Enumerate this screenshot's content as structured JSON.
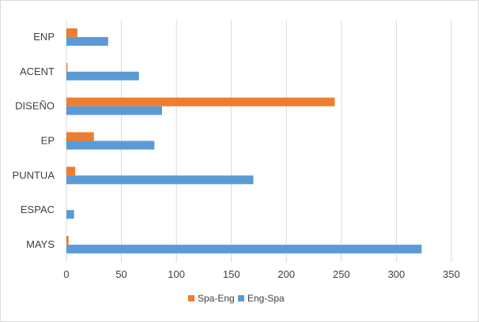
{
  "chart_data": {
    "type": "bar",
    "orientation": "horizontal",
    "categories": [
      "ENP",
      "ACENT",
      "DISEÑO",
      "EP",
      "PUNTUA",
      "ESPAC",
      "MAYS"
    ],
    "series": [
      {
        "name": "Spa-Eng",
        "color": "#ED7D31",
        "values": [
          10,
          1,
          244,
          25,
          8,
          0,
          2
        ]
      },
      {
        "name": "Eng-Spa",
        "color": "#5B9BD5",
        "values": [
          38,
          66,
          87,
          80,
          170,
          7,
          323
        ]
      }
    ],
    "xlim": [
      0,
      350
    ],
    "xticks": [
      "0",
      "50",
      "100",
      "150",
      "200",
      "250",
      "300",
      "350"
    ],
    "grid": true,
    "legend": "bottom"
  }
}
